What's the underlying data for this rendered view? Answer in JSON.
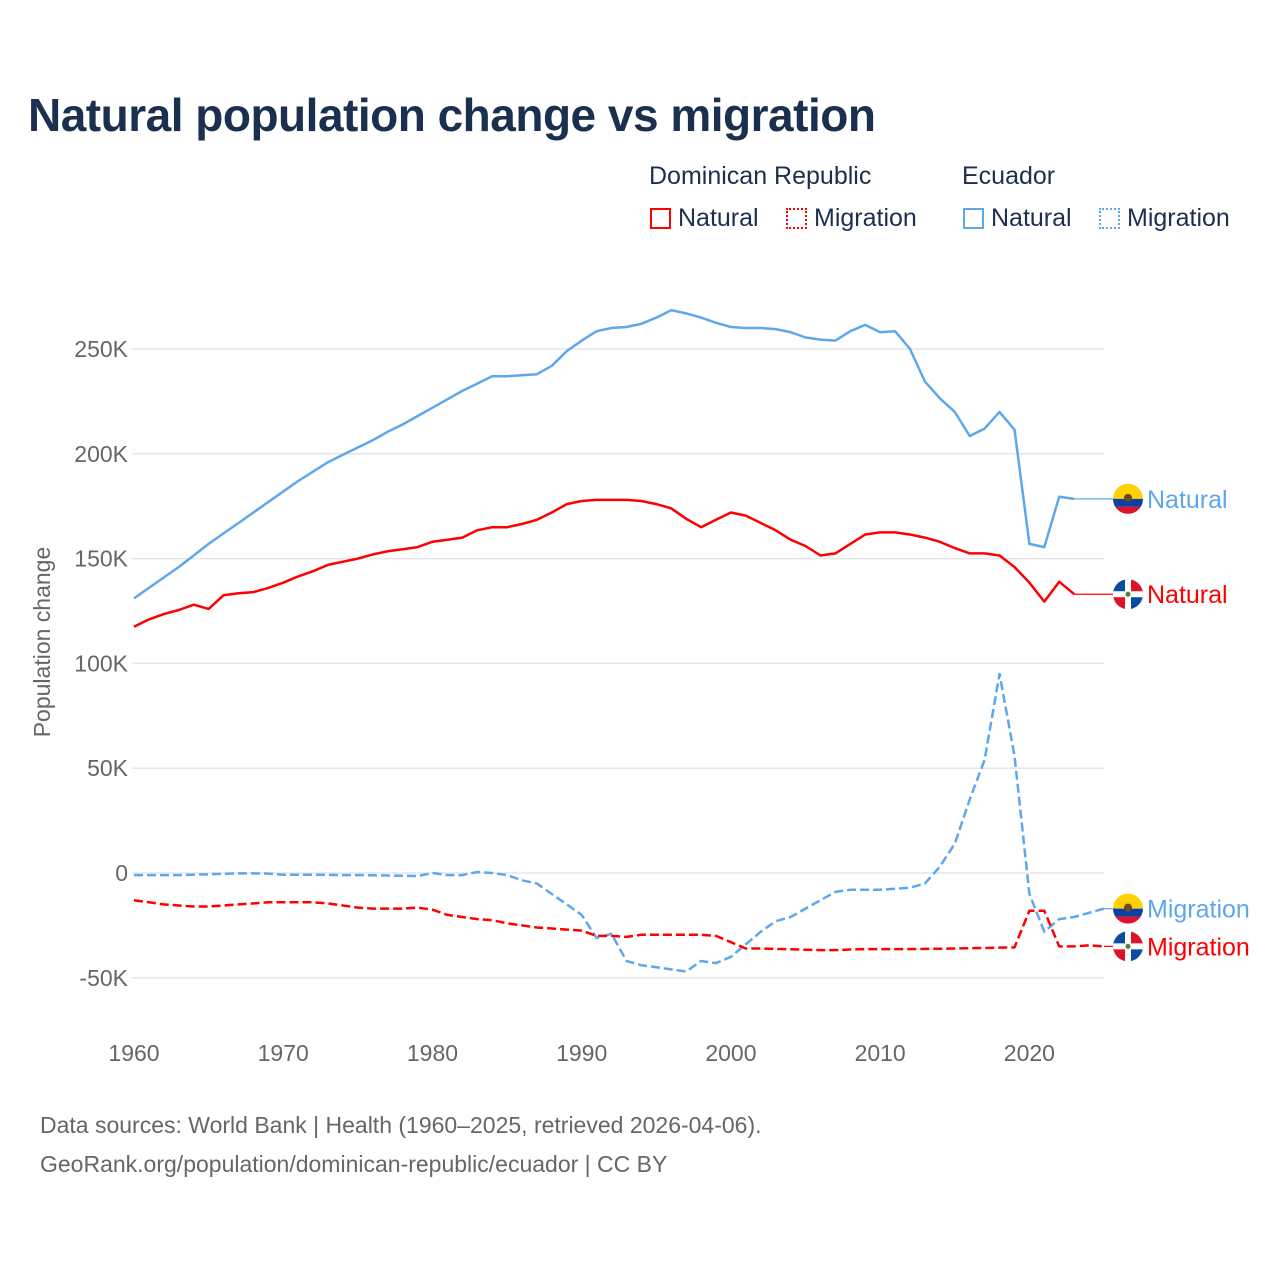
{
  "chart_data": {
    "type": "line",
    "title": "Natural population change vs migration",
    "ylabel": "Population change",
    "xlabel": "",
    "xlim": [
      1960,
      2025
    ],
    "ylim": [
      -50000,
      250000
    ],
    "x_ticks": [
      1960,
      1970,
      1980,
      1990,
      2000,
      2010,
      2020
    ],
    "x_tick_labels": [
      "1960",
      "1970",
      "1980",
      "1990",
      "2000",
      "2010",
      "2020"
    ],
    "y_ticks": [
      -50000,
      0,
      50000,
      100000,
      150000,
      200000,
      250000
    ],
    "y_tick_labels": [
      "-50K",
      "0",
      "50K",
      "100K",
      "150K",
      "200K",
      "250K"
    ],
    "grid": true,
    "legend": {
      "placement": "top-right",
      "groups": [
        {
          "country": "Dominican Republic",
          "items": [
            "Natural",
            "Migration"
          ]
        },
        {
          "country": "Ecuador",
          "items": [
            "Natural",
            "Migration"
          ]
        }
      ]
    },
    "series": [
      {
        "name": "Ecuador Natural",
        "country": "Ecuador",
        "kind": "Natural",
        "color": "#5ea7ec",
        "dash": "solid",
        "end_label": "Natural",
        "start_year": 1960,
        "values": [
          131000,
          136000,
          141000,
          146000,
          151500,
          157000,
          162000,
          167000,
          172000,
          177000,
          182000,
          187000,
          191500,
          196000,
          199500,
          203000,
          206500,
          210500,
          214000,
          218000,
          222000,
          226000,
          230000,
          233500,
          237000,
          237000,
          237500,
          238000,
          242000,
          249000,
          254000,
          258500,
          260000,
          260500,
          262000,
          265000,
          268500,
          267000,
          265000,
          262500,
          260500,
          260000,
          260000,
          259500,
          258000,
          255500,
          254500,
          254000,
          258500,
          261500,
          258000,
          258500,
          250000,
          234500,
          226500,
          220000,
          208500,
          212000,
          220000,
          211500,
          157000,
          155500,
          179500,
          178500
        ]
      },
      {
        "name": "Dominican Republic Natural",
        "country": "Dominican Republic",
        "kind": "Natural",
        "color": "#ff0000",
        "dash": "solid",
        "end_label": "Natural",
        "start_year": 1960,
        "values": [
          117500,
          121000,
          123500,
          125500,
          128000,
          126000,
          132500,
          133500,
          134000,
          136000,
          138500,
          141500,
          144000,
          147000,
          148500,
          150000,
          152000,
          153500,
          154500,
          155500,
          158000,
          159000,
          160000,
          163500,
          165000,
          165000,
          166500,
          168500,
          172000,
          176000,
          177500,
          178000,
          178000,
          178000,
          177500,
          176000,
          174000,
          169000,
          165000,
          168500,
          172000,
          170500,
          167000,
          163500,
          159000,
          156000,
          151500,
          152500,
          157000,
          161500,
          162500,
          162500,
          161500,
          160000,
          158000,
          155000,
          152500,
          152500,
          151500,
          146000,
          138500,
          129500,
          139000,
          133000
        ]
      },
      {
        "name": "Ecuador Migration",
        "country": "Ecuador",
        "kind": "Migration",
        "color": "#5ea7ec",
        "dash": "dashed",
        "end_label": "Migration",
        "start_year": 1960,
        "values": [
          -1000,
          -1000,
          -1000,
          -1000,
          -800,
          -600,
          -400,
          -200,
          -200,
          -300,
          -800,
          -800,
          -800,
          -900,
          -1000,
          -1000,
          -1100,
          -1200,
          -1300,
          -1500,
          0,
          -1000,
          -1000,
          500,
          0,
          -1000,
          -3500,
          -5000,
          -10000,
          -15000,
          -20000,
          -31000,
          -29000,
          -42000,
          -44000,
          -45000,
          -46000,
          -47000,
          -42000,
          -43000,
          -40000,
          -34000,
          -28000,
          -23000,
          -21000,
          -17000,
          -13000,
          -9000,
          -8000,
          -8000,
          -8000,
          -7500,
          -7000,
          -5000,
          3000,
          14000,
          35000,
          54000,
          95000,
          56000,
          -10000,
          -28000,
          -22000,
          -21000,
          -19000,
          -17000
        ]
      },
      {
        "name": "Dominican Republic Migration",
        "country": "Dominican Republic",
        "kind": "Migration",
        "color": "#ff0000",
        "dash": "dashed",
        "end_label": "Migration",
        "start_year": 1960,
        "values": [
          -13000,
          -14000,
          -15000,
          -15500,
          -16000,
          -16000,
          -15500,
          -15000,
          -14500,
          -14000,
          -14000,
          -14000,
          -14000,
          -14500,
          -15500,
          -16500,
          -17000,
          -17000,
          -17000,
          -16500,
          -17500,
          -20000,
          -21000,
          -22000,
          -22500,
          -24000,
          -25000,
          -26000,
          -26500,
          -27000,
          -27500,
          -30000,
          -30000,
          -30500,
          -29500,
          -29500,
          -29500,
          -29500,
          -29500,
          -30000,
          -33000,
          -36000,
          -36000,
          -36200,
          -36400,
          -36600,
          -36800,
          -36800,
          -36500,
          -36300,
          -36300,
          -36300,
          -36300,
          -36200,
          -36100,
          -36000,
          -35900,
          -35800,
          -35600,
          -35500,
          -18000,
          -18000,
          -35000,
          -35000,
          -34500,
          -35000
        ]
      }
    ]
  },
  "legend": {
    "dr_title": "Dominican Republic",
    "ec_title": "Ecuador",
    "dr_natural": "Natural",
    "dr_migration": "Migration",
    "ec_natural": "Natural",
    "ec_migration": "Migration"
  },
  "footer": {
    "line1": "Data sources: World Bank | Health (1960–2025, retrieved 2026-04-06).",
    "line2": "GeoRank.org/population/dominican-republic/ecuador | CC BY"
  },
  "icons": [
    "flag-ecuador-icon",
    "flag-dominican-republic-icon"
  ],
  "colors": {
    "dominican_republic": "#ff0000",
    "ecuador": "#5ea7ec",
    "title": "#1b2f4e",
    "grid": "#e6e6e6",
    "axis_text": "#666666"
  }
}
